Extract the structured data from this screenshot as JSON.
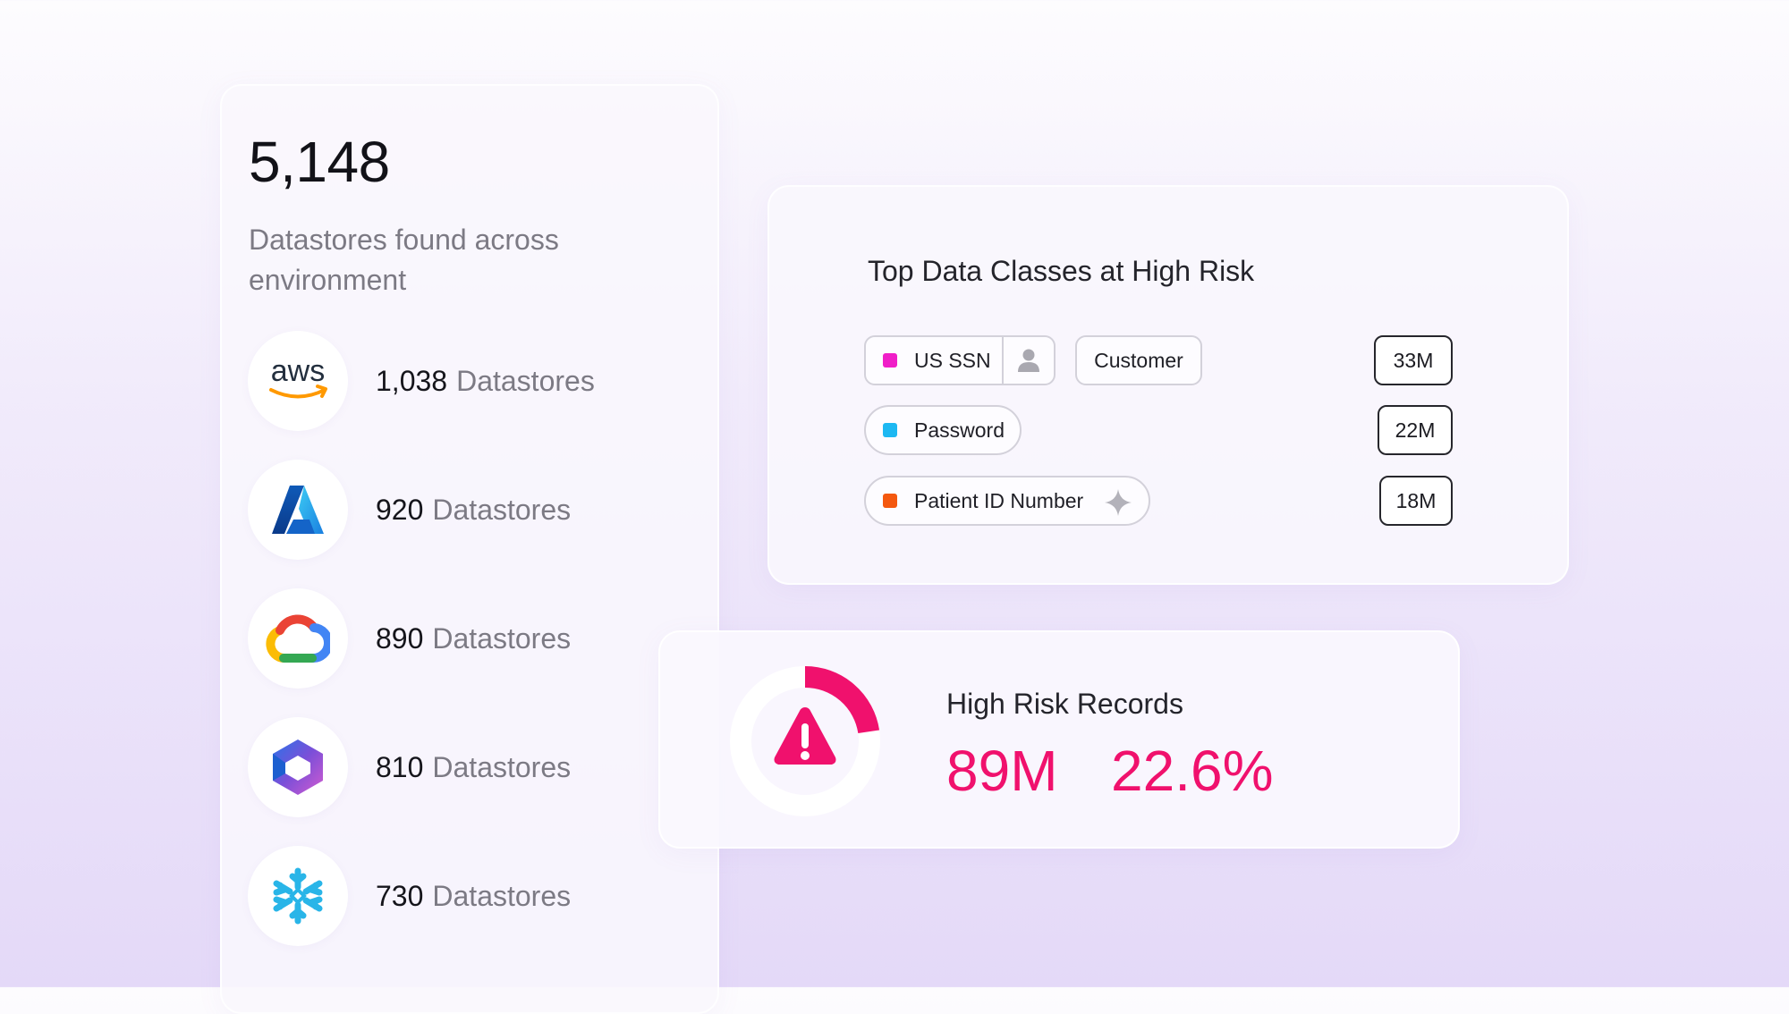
{
  "summary": {
    "total": "5,148",
    "description": "Datastores found across environment"
  },
  "providers": [
    {
      "icon": "aws-icon",
      "count": "1,038",
      "label": "Datastores"
    },
    {
      "icon": "azure-icon",
      "count": "920",
      "label": "Datastores"
    },
    {
      "icon": "google-cloud-icon",
      "count": "890",
      "label": "Datastores"
    },
    {
      "icon": "microsoft-365-icon",
      "count": "810",
      "label": "Datastores"
    },
    {
      "icon": "snowflake-icon",
      "count": "730",
      "label": "Datastores"
    }
  ],
  "aws_wordmark": "aws",
  "data_classes": {
    "title": "Top Data Classes at High Risk",
    "items": [
      {
        "name": "US SSN",
        "color": "#f01ec8",
        "icon": "person-icon",
        "tag": "Customer",
        "count": "33M"
      },
      {
        "name": "Password",
        "color": "#1db8f2",
        "count": "22M"
      },
      {
        "name": "Patient ID Number",
        "color": "#f4580f",
        "icon": "sparkle-icon",
        "count": "18M"
      }
    ]
  },
  "high_risk": {
    "title": "High Risk Records",
    "records": "89M",
    "percent": "22.6%",
    "percent_value": 22.6,
    "accent": "#f0116d",
    "icon": "warning-icon"
  }
}
